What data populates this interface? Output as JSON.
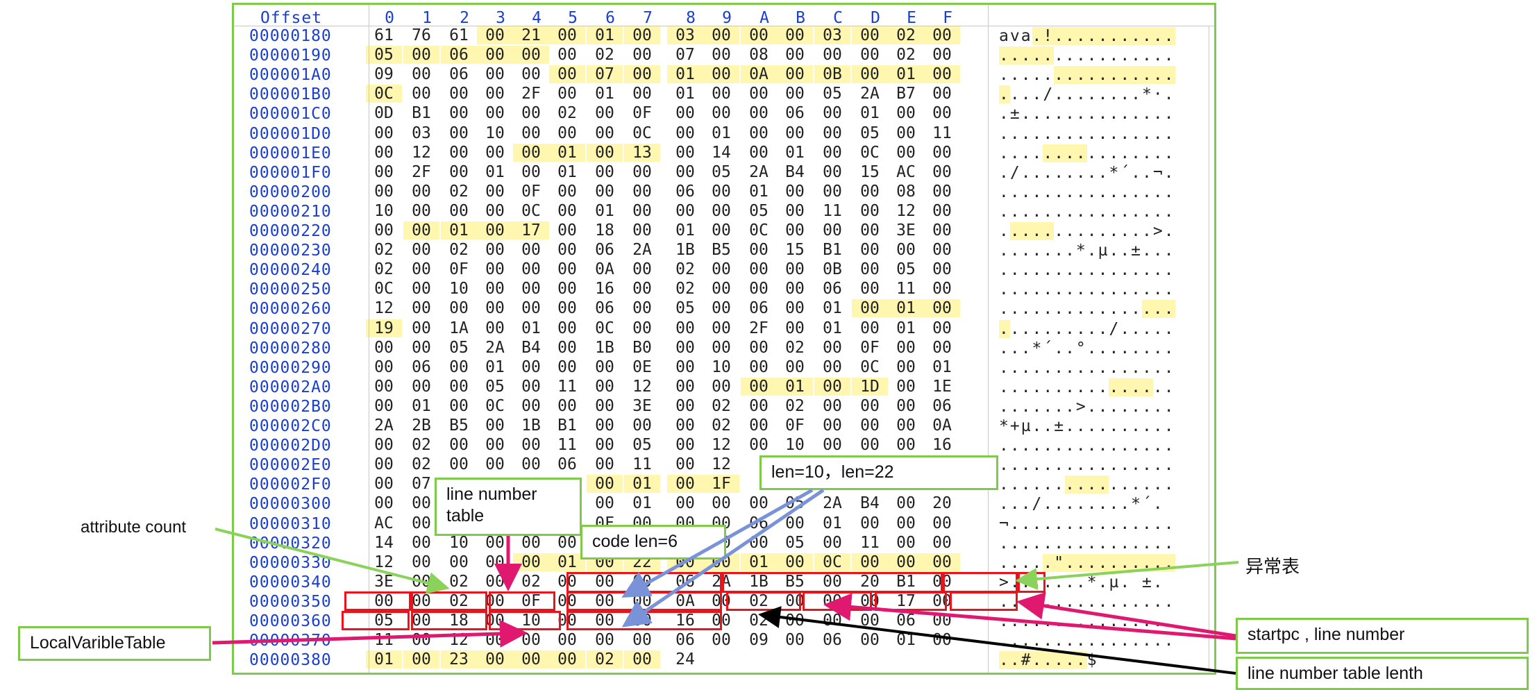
{
  "hex_editor": {
    "offset_header": "Offset",
    "column_headers": [
      "0",
      "1",
      "2",
      "3",
      "4",
      "5",
      "6",
      "7",
      "8",
      "9",
      "A",
      "B",
      "C",
      "D",
      "E",
      "F"
    ],
    "rows": [
      {
        "offset": "00000180",
        "bytes": [
          "61",
          "76",
          "61",
          "00",
          "21",
          "00",
          "01",
          "00",
          "03",
          "00",
          "00",
          "00",
          "03",
          "00",
          "02",
          "00"
        ],
        "hl": [
          3,
          4,
          5,
          6,
          7,
          8,
          9,
          10,
          11,
          12,
          13,
          14,
          15
        ],
        "ascii": "ava.!...........",
        "ascii_hl": [
          3,
          15
        ]
      },
      {
        "offset": "00000190",
        "bytes": [
          "05",
          "00",
          "06",
          "00",
          "00",
          "00",
          "02",
          "00",
          "07",
          "00",
          "08",
          "00",
          "00",
          "00",
          "02",
          "00"
        ],
        "hl": [
          0,
          1,
          2,
          3,
          4
        ],
        "ascii": "................",
        "ascii_hl": [
          0,
          4
        ]
      },
      {
        "offset": "000001A0",
        "bytes": [
          "09",
          "00",
          "06",
          "00",
          "00",
          "00",
          "07",
          "00",
          "01",
          "00",
          "0A",
          "00",
          "0B",
          "00",
          "01",
          "00"
        ],
        "hl": [
          5,
          6,
          7,
          8,
          9,
          10,
          11,
          12,
          13,
          14,
          15
        ],
        "ascii": "................",
        "ascii_hl": [
          5,
          15
        ]
      },
      {
        "offset": "000001B0",
        "bytes": [
          "0C",
          "00",
          "00",
          "00",
          "2F",
          "00",
          "01",
          "00",
          "01",
          "00",
          "00",
          "00",
          "05",
          "2A",
          "B7",
          "00"
        ],
        "hl": [
          0
        ],
        "ascii": "..../........*·.",
        "ascii_hl": [
          0,
          0
        ]
      },
      {
        "offset": "000001C0",
        "bytes": [
          "0D",
          "B1",
          "00",
          "00",
          "00",
          "02",
          "00",
          "0F",
          "00",
          "00",
          "00",
          "06",
          "00",
          "01",
          "00",
          "00"
        ],
        "hl": [],
        "ascii": ".±..............",
        "ascii_hl": []
      },
      {
        "offset": "000001D0",
        "bytes": [
          "00",
          "03",
          "00",
          "10",
          "00",
          "00",
          "00",
          "0C",
          "00",
          "01",
          "00",
          "00",
          "00",
          "05",
          "00",
          "11"
        ],
        "hl": [],
        "ascii": "................",
        "ascii_hl": []
      },
      {
        "offset": "000001E0",
        "bytes": [
          "00",
          "12",
          "00",
          "00",
          "00",
          "01",
          "00",
          "13",
          "00",
          "14",
          "00",
          "01",
          "00",
          "0C",
          "00",
          "00"
        ],
        "hl": [
          4,
          5,
          6,
          7
        ],
        "ascii": "................",
        "ascii_hl": [
          4,
          7
        ]
      },
      {
        "offset": "000001F0",
        "bytes": [
          "00",
          "2F",
          "00",
          "01",
          "00",
          "01",
          "00",
          "00",
          "00",
          "05",
          "2A",
          "B4",
          "00",
          "15",
          "AC",
          "00"
        ],
        "hl": [],
        "ascii": "./........*´..¬.",
        "ascii_hl": []
      },
      {
        "offset": "00000200",
        "bytes": [
          "00",
          "00",
          "02",
          "00",
          "0F",
          "00",
          "00",
          "00",
          "06",
          "00",
          "01",
          "00",
          "00",
          "00",
          "08",
          "00"
        ],
        "hl": [],
        "ascii": "................",
        "ascii_hl": []
      },
      {
        "offset": "00000210",
        "bytes": [
          "10",
          "00",
          "00",
          "00",
          "0C",
          "00",
          "01",
          "00",
          "00",
          "00",
          "05",
          "00",
          "11",
          "00",
          "12",
          "00"
        ],
        "hl": [],
        "ascii": "................",
        "ascii_hl": []
      },
      {
        "offset": "00000220",
        "bytes": [
          "00",
          "00",
          "01",
          "00",
          "17",
          "00",
          "18",
          "00",
          "01",
          "00",
          "0C",
          "00",
          "00",
          "00",
          "3E",
          "00"
        ],
        "hl": [
          1,
          2,
          3,
          4
        ],
        "ascii": "..............>.",
        "ascii_hl": [
          1,
          4
        ]
      },
      {
        "offset": "00000230",
        "bytes": [
          "02",
          "00",
          "02",
          "00",
          "00",
          "00",
          "06",
          "2A",
          "1B",
          "B5",
          "00",
          "15",
          "B1",
          "00",
          "00",
          "00"
        ],
        "hl": [],
        "ascii": ".......*.µ..±...",
        "ascii_hl": []
      },
      {
        "offset": "00000240",
        "bytes": [
          "02",
          "00",
          "0F",
          "00",
          "00",
          "00",
          "0A",
          "00",
          "02",
          "00",
          "00",
          "00",
          "0B",
          "00",
          "05",
          "00"
        ],
        "hl": [],
        "ascii": "................",
        "ascii_hl": []
      },
      {
        "offset": "00000250",
        "bytes": [
          "0C",
          "00",
          "10",
          "00",
          "00",
          "00",
          "16",
          "00",
          "02",
          "00",
          "00",
          "00",
          "06",
          "00",
          "11",
          "00"
        ],
        "hl": [],
        "ascii": "................",
        "ascii_hl": []
      },
      {
        "offset": "00000260",
        "bytes": [
          "12",
          "00",
          "00",
          "00",
          "00",
          "00",
          "06",
          "00",
          "05",
          "00",
          "06",
          "00",
          "01",
          "00",
          "01",
          "00"
        ],
        "hl": [
          13,
          14,
          15
        ],
        "ascii": "................",
        "ascii_hl": [
          13,
          15
        ]
      },
      {
        "offset": "00000270",
        "bytes": [
          "19",
          "00",
          "1A",
          "00",
          "01",
          "00",
          "0C",
          "00",
          "00",
          "00",
          "2F",
          "00",
          "01",
          "00",
          "01",
          "00"
        ],
        "hl": [
          0
        ],
        "ascii": "........../.....",
        "ascii_hl": [
          0,
          0
        ]
      },
      {
        "offset": "00000280",
        "bytes": [
          "00",
          "00",
          "05",
          "2A",
          "B4",
          "00",
          "1B",
          "B0",
          "00",
          "00",
          "00",
          "02",
          "00",
          "0F",
          "00",
          "00"
        ],
        "hl": [],
        "ascii": "...*´..°........",
        "ascii_hl": []
      },
      {
        "offset": "00000290",
        "bytes": [
          "00",
          "06",
          "00",
          "01",
          "00",
          "00",
          "00",
          "0E",
          "00",
          "10",
          "00",
          "00",
          "00",
          "0C",
          "00",
          "01"
        ],
        "hl": [],
        "ascii": "................",
        "ascii_hl": []
      },
      {
        "offset": "000002A0",
        "bytes": [
          "00",
          "00",
          "00",
          "05",
          "00",
          "11",
          "00",
          "12",
          "00",
          "00",
          "00",
          "01",
          "00",
          "1D",
          "00",
          "1E"
        ],
        "hl": [
          10,
          11,
          12,
          13
        ],
        "ascii": "................",
        "ascii_hl": [
          10,
          13
        ]
      },
      {
        "offset": "000002B0",
        "bytes": [
          "00",
          "01",
          "00",
          "0C",
          "00",
          "00",
          "00",
          "3E",
          "00",
          "02",
          "00",
          "02",
          "00",
          "00",
          "00",
          "06"
        ],
        "hl": [],
        "ascii": ".......>........",
        "ascii_hl": []
      },
      {
        "offset": "000002C0",
        "bytes": [
          "2A",
          "2B",
          "B5",
          "00",
          "1B",
          "B1",
          "00",
          "00",
          "00",
          "02",
          "00",
          "0F",
          "00",
          "00",
          "00",
          "0A"
        ],
        "hl": [],
        "ascii": "*+µ..±..........",
        "ascii_hl": []
      },
      {
        "offset": "000002D0",
        "bytes": [
          "00",
          "02",
          "00",
          "00",
          "00",
          "11",
          "00",
          "05",
          "00",
          "12",
          "00",
          "10",
          "00",
          "00",
          "00",
          "16"
        ],
        "hl": [],
        "ascii": "................",
        "ascii_hl": []
      },
      {
        "offset": "000002E0",
        "bytes": [
          "00",
          "02",
          "00",
          "00",
          "00",
          "06",
          "00",
          "11",
          "00",
          "12",
          "",
          "",
          "",
          "",
          "",
          ""
        ],
        "hl": [],
        "ascii": "................",
        "ascii_hl": []
      },
      {
        "offset": "000002F0",
        "bytes": [
          "00",
          "07",
          "",
          "",
          "",
          "",
          "00",
          "01",
          "00",
          "1F",
          "",
          "",
          "",
          "",
          "",
          ""
        ],
        "hl": [
          6,
          7,
          8,
          9
        ],
        "ascii": "................",
        "ascii_hl": [
          6,
          9
        ]
      },
      {
        "offset": "00000300",
        "bytes": [
          "00",
          "00",
          "",
          "",
          "",
          "",
          "00",
          "01",
          "00",
          "00",
          "00",
          "05",
          "2A",
          "B4",
          "00",
          "20"
        ],
        "hl": [],
        "ascii": ".../........*´. ",
        "ascii_hl": []
      },
      {
        "offset": "00000310",
        "bytes": [
          "AC",
          "00",
          "",
          "",
          "",
          "",
          "0F",
          "00",
          "00",
          "00",
          "06",
          "00",
          "01",
          "00",
          "00",
          "00"
        ],
        "hl": [],
        "ascii": "¬...............",
        "ascii_hl": []
      },
      {
        "offset": "00000320",
        "bytes": [
          "14",
          "00",
          "10",
          "00",
          "00",
          "00",
          "",
          "",
          "00",
          "00",
          "00",
          "05",
          "00",
          "11",
          "00",
          "00"
        ],
        "hl": [],
        "ascii": "................",
        "ascii_hl": []
      },
      {
        "offset": "00000330",
        "bytes": [
          "12",
          "00",
          "00",
          "00",
          "00",
          "01",
          "00",
          "22",
          "00",
          "00",
          "01",
          "00",
          "0C",
          "00",
          "00",
          "00"
        ],
        "hl": [
          4,
          5,
          6,
          7,
          8,
          9,
          10,
          11,
          12,
          13,
          14,
          15
        ],
        "ascii": ".....\"..........",
        "ascii_hl": [
          4,
          15
        ]
      },
      {
        "offset": "00000340",
        "bytes": [
          "3E",
          "00",
          "02",
          "00",
          "02",
          "00",
          "00",
          "00",
          "06",
          "2A",
          "1B",
          "B5",
          "00",
          "20",
          "B1",
          "00"
        ],
        "hl": [],
        "ascii": ">.......*.µ. ±.",
        "ascii_hl": []
      },
      {
        "offset": "00000350",
        "bytes": [
          "00",
          "00",
          "02",
          "00",
          "0F",
          "00",
          "00",
          "00",
          "0A",
          "00",
          "02",
          "00",
          "00",
          "00",
          "17",
          "00"
        ],
        "hl": [],
        "ascii": "................",
        "ascii_hl": []
      },
      {
        "offset": "00000360",
        "bytes": [
          "05",
          "00",
          "18",
          "00",
          "10",
          "00",
          "00",
          "00",
          "16",
          "00",
          "02",
          "00",
          "00",
          "00",
          "06",
          "00"
        ],
        "hl": [],
        "ascii": "................",
        "ascii_hl": []
      },
      {
        "offset": "00000370",
        "bytes": [
          "11",
          "00",
          "12",
          "00",
          "00",
          "00",
          "00",
          "00",
          "06",
          "00",
          "09",
          "00",
          "06",
          "00",
          "01",
          "00"
        ],
        "hl": [],
        "ascii": "................",
        "ascii_hl": []
      },
      {
        "offset": "00000380",
        "bytes": [
          "01",
          "00",
          "23",
          "00",
          "00",
          "00",
          "02",
          "00",
          "24",
          "",
          "",
          "",
          "",
          "",
          "",
          ""
        ],
        "hl": [
          0,
          1,
          2,
          3,
          4,
          5,
          6,
          7
        ],
        "ascii": "..#.....$",
        "ascii_hl": [
          0,
          7
        ]
      }
    ]
  },
  "annotations": {
    "attribute_count": "attribute count",
    "line_number_table": "line number\ntable",
    "code_len": "code len=6",
    "len_text": "len=10，len=22",
    "exception_table": "异常表",
    "local_variable_table": "LocalVaribleTable",
    "startpc_line_number": "startpc , line number",
    "line_number_table_length": "line number table lenth"
  },
  "colors": {
    "offset_text": "#1a3fd0",
    "highlight": "#fff7b0",
    "frame_green": "#7ecb4a",
    "red_box": "#e8141c",
    "arrow_green": "#8ad25a",
    "arrow_pink": "#e0186f",
    "arrow_blue": "#7a93d8",
    "arrow_black": "#000000"
  }
}
